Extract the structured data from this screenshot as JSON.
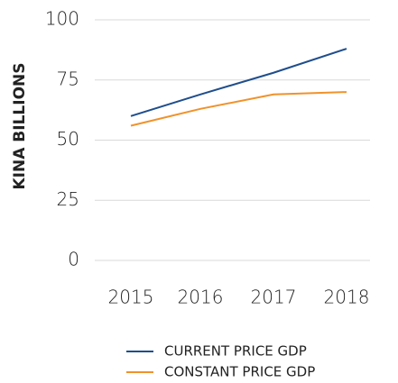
{
  "chart_data": {
    "type": "line",
    "y_label": "KINA BILLIONS",
    "categories": [
      "2015",
      "2016",
      "2017",
      "2018"
    ],
    "series": [
      {
        "name": "CURRENT PRICE GDP",
        "color": "#1f4e8c",
        "values": [
          60,
          69,
          78,
          88
        ]
      },
      {
        "name": "CONSTANT PRICE GDP",
        "color": "#f0922b",
        "values": [
          56,
          63,
          69,
          70
        ]
      }
    ],
    "ylim": [
      0,
      100
    ],
    "yticks": [
      0,
      25,
      50,
      75,
      100
    ],
    "grid": true,
    "legend": "bottom"
  }
}
